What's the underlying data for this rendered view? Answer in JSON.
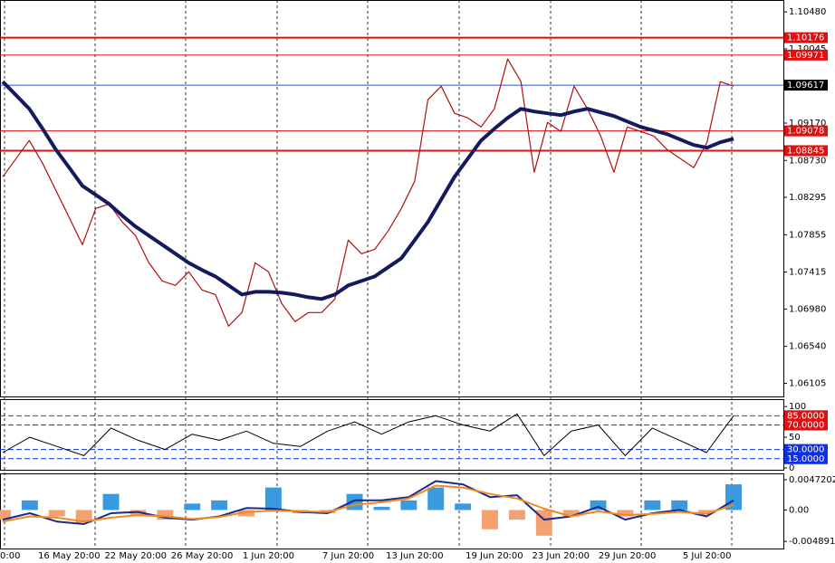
{
  "chart_data": [
    {
      "type": "line",
      "categories": [
        "0:00",
        null,
        null,
        null,
        null,
        "16 May 20:00",
        null,
        null,
        null,
        null,
        "22 May 20:00",
        null,
        null,
        null,
        null,
        "26 May 20:00",
        null,
        null,
        null,
        null,
        "1 Jun 20:00",
        null,
        null,
        null,
        null,
        null,
        "7 Jun 20:00",
        null,
        null,
        null,
        null,
        "13 Jun 20:00",
        null,
        null,
        null,
        null,
        null,
        "19 Jun 20:00",
        null,
        null,
        null,
        null,
        "23 Jun 20:00",
        null,
        null,
        null,
        null,
        "29 Jun 20:00",
        null,
        null,
        null,
        null,
        null,
        "5 Jul 20:00",
        null,
        null
      ],
      "series": [
        {
          "color": "#b01010",
          "width": 1.2,
          "values": [
            1.08538,
            1.08751,
            1.08965,
            1.08698,
            1.08378,
            1.08058,
            1.07738,
            1.08165,
            1.08218,
            1.08005,
            1.07845,
            1.07524,
            1.07311,
            1.07258,
            1.07418,
            1.07204,
            1.07151,
            1.06778,
            1.06938,
            1.07524,
            1.07418,
            1.07044,
            1.06831,
            1.06938,
            1.06938,
            1.07098,
            1.07791,
            1.07631,
            1.07684,
            1.07898,
            1.08165,
            1.08485,
            1.09445,
            1.09605,
            1.09285,
            1.09232,
            1.09125,
            1.09338,
            1.09925,
            1.09658,
            1.08591,
            1.09178,
            1.09072,
            1.09605,
            1.09338,
            1.09018,
            1.08591,
            1.09125,
            1.09072,
            1.09018,
            1.08858,
            1.08751,
            1.08645,
            1.08944,
            1.09658,
            1.09605
          ]
        },
        {
          "color": "#141a5c",
          "width": 4,
          "values": [
            1.09658,
            1.09498,
            1.09338,
            1.09104,
            1.08858,
            1.08645,
            1.08431,
            1.08325,
            1.08218,
            1.08079,
            1.07951,
            1.07845,
            1.07738,
            1.07631,
            1.07524,
            1.07439,
            1.07364,
            1.07258,
            1.07151,
            1.07183,
            1.07183,
            1.07172,
            1.07151,
            1.07119,
            1.07098,
            1.07151,
            1.07258,
            1.07311,
            1.07364,
            1.07471,
            1.07578,
            1.07791,
            1.08005,
            1.08271,
            1.08538,
            1.08751,
            1.08965,
            1.09104,
            1.09232,
            1.09338,
            1.09306,
            1.09285,
            1.09264,
            1.09306,
            1.09338,
            1.09296,
            1.09253,
            1.09189,
            1.09125,
            1.09082,
            1.0904,
            1.08976,
            1.08912,
            1.0888,
            1.08944,
            1.08986
          ]
        }
      ],
      "ylim": [
        1.0595,
        1.1062
      ],
      "yticks": [
        {
          "value": 1.1048,
          "label": "1.10480"
        },
        {
          "value": 1.10045,
          "label": "1.10045"
        },
        {
          "value": 1.0917,
          "label": "1.09170"
        },
        {
          "value": 1.0873,
          "label": "1.08730"
        },
        {
          "value": 1.08295,
          "label": "1.08295"
        },
        {
          "value": 1.07855,
          "label": "1.07855"
        },
        {
          "value": 1.07415,
          "label": "1.07415"
        },
        {
          "value": 1.0698,
          "label": "1.06980"
        },
        {
          "value": 1.0654,
          "label": "1.06540"
        },
        {
          "value": 1.06105,
          "label": "1.06105"
        }
      ],
      "levels": [
        {
          "value": 1.10176,
          "label": "1.10176",
          "color": "#e01010",
          "width": 2
        },
        {
          "value": 1.09971,
          "label": "1.09971",
          "color": "#e01010",
          "width": 1
        },
        {
          "value": 1.09617,
          "label": "1.09617",
          "color": "#3050d0",
          "width": 1,
          "box": "#000000"
        },
        {
          "value": 1.09078,
          "label": "1.09078",
          "color": "#e01010",
          "width": 1
        },
        {
          "value": 1.08845,
          "label": "1.08845",
          "color": "#e01010",
          "width": 2
        }
      ]
    },
    {
      "type": "line",
      "series": [
        {
          "color": "#000000",
          "width": 1,
          "values": [
            25,
            50,
            35,
            20,
            65,
            45,
            30,
            55,
            45,
            60,
            40,
            35,
            60,
            75,
            55,
            75,
            85,
            70,
            60,
            88,
            20,
            60,
            70,
            20,
            65,
            45,
            25,
            85
          ]
        }
      ],
      "ylim": [
        -3,
        112
      ],
      "yticks": [
        100,
        50,
        0
      ],
      "levels": [
        {
          "value": 85,
          "label": "85.0000",
          "color": "#e01010",
          "width": 1,
          "box": "#e01010"
        },
        {
          "value": 70,
          "label": "70.0000",
          "color": "#e01010",
          "width": 1,
          "box": "#e01010"
        },
        {
          "value": 30,
          "label": "30.0000",
          "color": "#1030e0",
          "width": 1,
          "box": "#1030e0"
        },
        {
          "value": 15,
          "label": "15.0000",
          "color": "#1030e0",
          "width": 1,
          "box": "#1030e0"
        }
      ]
    },
    {
      "type": "bar",
      "color": "#3a9ae0",
      "negative_color": "#f5a070",
      "values": [
        -0.0015,
        0.0015,
        -0.001,
        -0.002,
        0.0025,
        -0.001,
        -0.0015,
        0.001,
        0.0015,
        -0.001,
        0.0035,
        -0.0005,
        -0.0005,
        0.0025,
        0.0005,
        0.0015,
        0.0035,
        0.001,
        -0.003,
        -0.0015,
        -0.004,
        -0.001,
        0.0015,
        -0.001,
        0.0015,
        0.0015,
        -0.0005,
        0.004
      ],
      "series": [
        {
          "color": "#1a2a8a",
          "width": 2,
          "values": [
            -0.0015,
            -0.0005,
            -0.0018,
            -0.0022,
            -0.0005,
            -0.0003,
            -0.0012,
            -0.0015,
            -0.001,
            0.0003,
            0.0002,
            -0.0003,
            -0.0005,
            0.0015,
            0.0015,
            0.002,
            0.0045,
            0.004,
            0.002,
            0.0023,
            -0.0015,
            -0.001,
            0.0005,
            -0.0015,
            -0.0005,
            0,
            -0.001,
            0.0015
          ]
        },
        {
          "color": "#f08a20",
          "width": 2,
          "values": [
            -0.0018,
            -0.001,
            -0.0012,
            -0.0018,
            -0.0012,
            -0.0008,
            -0.001,
            -0.0014,
            -0.0011,
            -0.0003,
            -0.0001,
            -0.0002,
            -0.0003,
            0.0008,
            0.0012,
            0.0018,
            0.0038,
            0.0035,
            0.0025,
            0.0018,
            0.0002,
            -0.001,
            -0.0002,
            -0.0008,
            -0.0006,
            -0.0003,
            -0.0006,
            0.0008
          ]
        }
      ],
      "ylim": [
        -0.006,
        0.0057
      ],
      "yticks": [
        0.0047202,
        {
          "value": 0,
          "label": "0.00"
        },
        -0.0048919
      ]
    }
  ]
}
